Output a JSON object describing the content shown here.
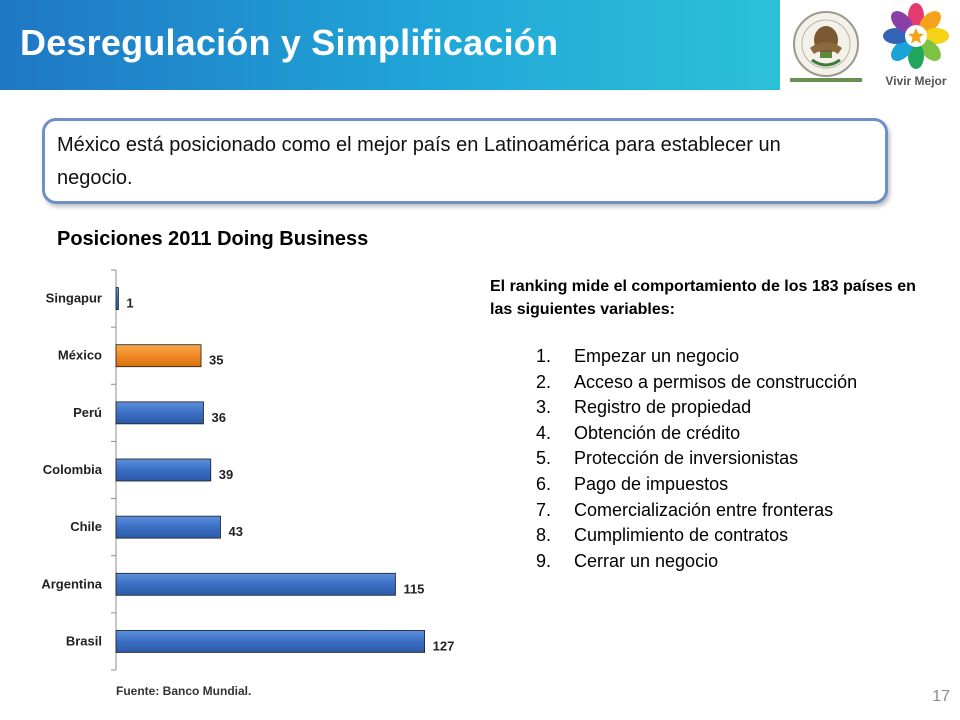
{
  "header": {
    "title": "Desregulación y Simplificación",
    "logo_text": "Vivir Mejor"
  },
  "callout": {
    "text": "México está posicionado como el mejor país en Latinoamérica para establecer un negocio."
  },
  "chart_data": {
    "type": "bar",
    "orientation": "horizontal",
    "title": "Posiciones 2011 Doing Business",
    "categories": [
      "Singapur",
      "México",
      "Perú",
      "Colombia",
      "Chile",
      "Argentina",
      "Brasil"
    ],
    "values": [
      1,
      35,
      36,
      39,
      43,
      115,
      127
    ],
    "highlight_category": "México",
    "colors": {
      "bar": "#3a6fc4",
      "highlight": "#f08a24"
    },
    "xlim": [
      0,
      130
    ],
    "grid": false,
    "legend": "none"
  },
  "source": "Fuente: Banco Mundial.",
  "right": {
    "intro": "El ranking mide el comportamiento de los 183 países en las siguientes variables:",
    "items": [
      "Empezar un negocio",
      "Acceso a permisos de construcción",
      "Registro de propiedad",
      "Obtención de crédito",
      "Protección de inversionistas",
      "Pago de impuestos",
      "Comercialización entre fronteras",
      "Cumplimiento de contratos",
      "Cerrar un negocio"
    ]
  },
  "page_number": "17"
}
